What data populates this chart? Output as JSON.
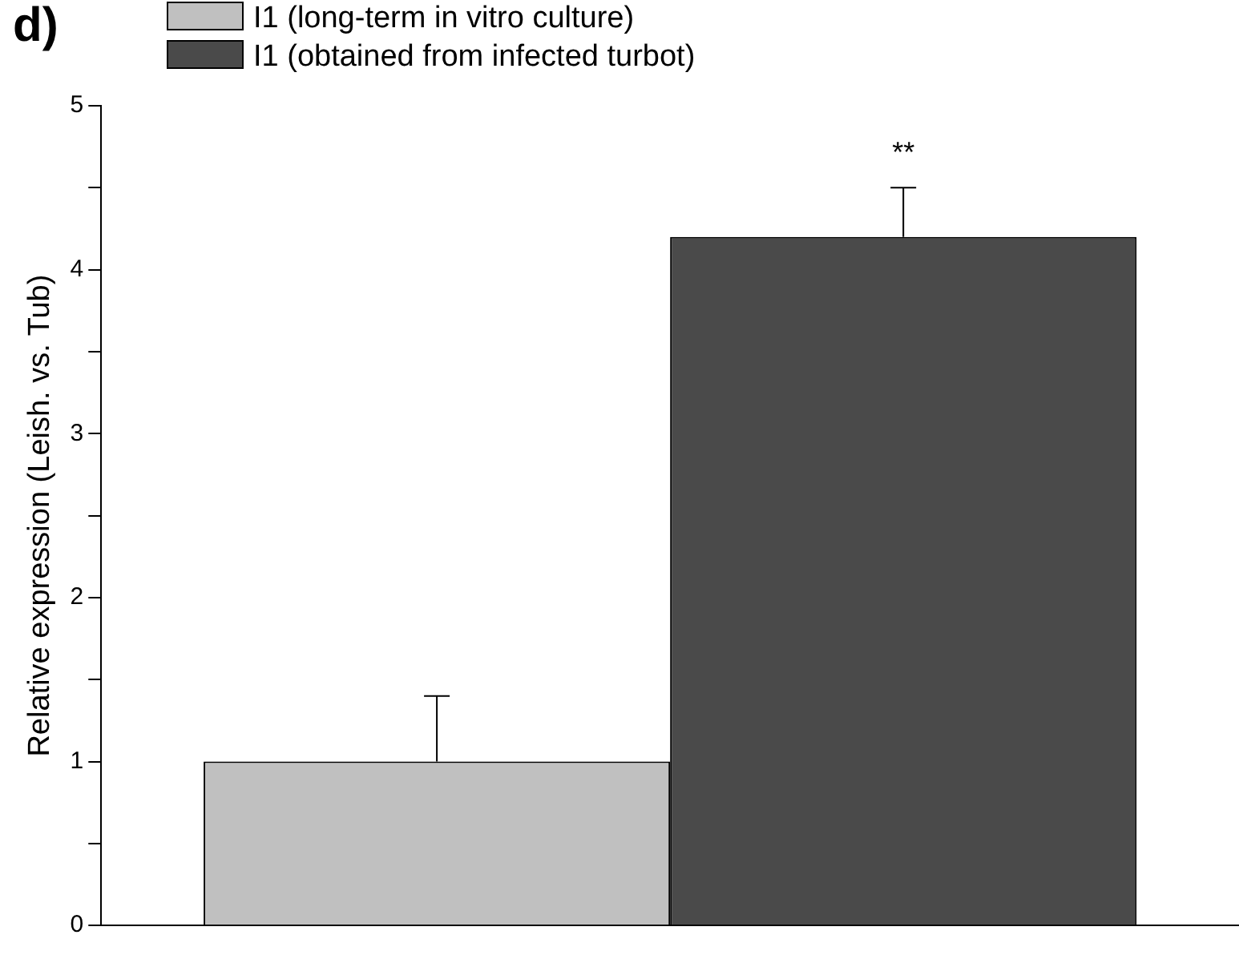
{
  "chart_data": {
    "type": "bar",
    "ylabel": "Relative expression (Leish. vs. Tub)",
    "categories": [
      null
    ],
    "series": [
      {
        "name": "I1 (long-term in vitro culture)",
        "color": "#c0c0c0",
        "values": [
          1
        ],
        "errors": [
          [
            1,
            1.4
          ]
        ]
      },
      {
        "name": "I1 (obtained from infected turbot)",
        "color": "#4a4a4a",
        "values": [
          4.2
        ],
        "errors": [
          [
            4.2,
            4.5
          ]
        ]
      }
    ],
    "ylim": [
      0,
      5
    ],
    "yticks": [
      0,
      {
        "value": 0.5,
        "label": null
      },
      1,
      {
        "value": 1.5,
        "label": null
      },
      2,
      {
        "value": 2.5,
        "label": null
      },
      3,
      {
        "value": 3.5,
        "label": null
      },
      4,
      {
        "value": 4.5,
        "label": null
      },
      5
    ],
    "legend": "top left",
    "annotations": [
      "d)",
      "**"
    ]
  }
}
